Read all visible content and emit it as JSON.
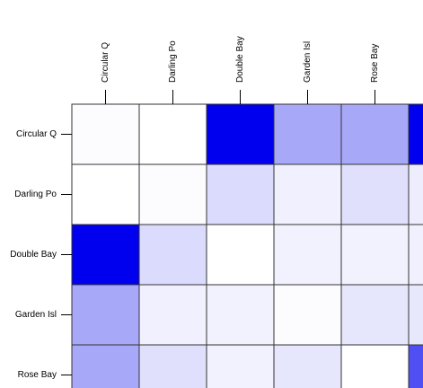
{
  "chart_data": {
    "type": "heatmap",
    "columns": [
      "Circular Q",
      "Darling Po",
      "Double Bay",
      "Garden Isl",
      "Rose Bay",
      null
    ],
    "rows": [
      "Circular Q",
      "Darling Po",
      "Double Bay",
      "Garden Isl",
      "Rose Bay"
    ],
    "values": [
      [
        0.01,
        0,
        1,
        0.34,
        0.34,
        1
      ],
      [
        0,
        0.01,
        0.14,
        0.06,
        0.12,
        0.07
      ],
      [
        1,
        0.14,
        0,
        0.05,
        0.05,
        0.06
      ],
      [
        0.34,
        0.06,
        0.05,
        0.01,
        0.1,
        0.09
      ],
      [
        0.34,
        0.12,
        0.05,
        0.1,
        0,
        0.69
      ]
    ],
    "colors": [
      "#ffffff",
      "#0000ee"
    ]
  }
}
